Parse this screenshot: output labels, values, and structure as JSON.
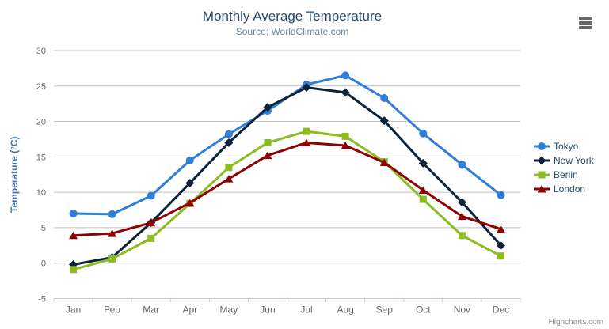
{
  "toolbar": {
    "menu_icon": "hamburger-icon"
  },
  "credits": {
    "label": "Highcharts.com"
  },
  "chart_data": {
    "type": "line",
    "title": "Monthly Average Temperature",
    "subtitle": "Source: WorldClimate.com",
    "categories": [
      "Jan",
      "Feb",
      "Mar",
      "Apr",
      "May",
      "Jun",
      "Jul",
      "Aug",
      "Sep",
      "Oct",
      "Nov",
      "Dec"
    ],
    "xlabel": "",
    "ylabel": "Temperature (°C)",
    "ylim": [
      -5,
      30
    ],
    "yticks": [
      -5,
      0,
      5,
      10,
      15,
      20,
      25,
      30
    ],
    "grid": true,
    "legend_position": "right",
    "series": [
      {
        "name": "Tokyo",
        "color": "#2f7ed8",
        "marker": "circle",
        "values": [
          7.0,
          6.9,
          9.5,
          14.5,
          18.2,
          21.5,
          25.2,
          26.5,
          23.3,
          18.3,
          13.9,
          9.6
        ]
      },
      {
        "name": "New York",
        "color": "#0d233a",
        "marker": "diamond",
        "values": [
          -0.2,
          0.8,
          5.7,
          11.3,
          17.0,
          22.0,
          24.8,
          24.1,
          20.1,
          14.1,
          8.6,
          2.5
        ]
      },
      {
        "name": "Berlin",
        "color": "#8bbc21",
        "marker": "square",
        "values": [
          -0.9,
          0.6,
          3.5,
          8.4,
          13.5,
          17.0,
          18.6,
          17.9,
          14.3,
          9.0,
          3.9,
          1.0
        ]
      },
      {
        "name": "London",
        "color": "#910000",
        "marker": "triangle",
        "values": [
          3.9,
          4.2,
          5.7,
          8.5,
          11.9,
          15.2,
          17.0,
          16.6,
          14.2,
          10.3,
          6.6,
          4.8
        ]
      }
    ],
    "colors": {
      "grid_line": "#C0C0C0",
      "axis_line": "#C0D0E0",
      "tick_label": "#666666",
      "axis_title": "#4572A7",
      "title": "#274B6D",
      "subtitle": "#6D869F",
      "legend_text": "#274B6D",
      "credits_text": "#909090",
      "menu_icon": "#666666"
    }
  }
}
